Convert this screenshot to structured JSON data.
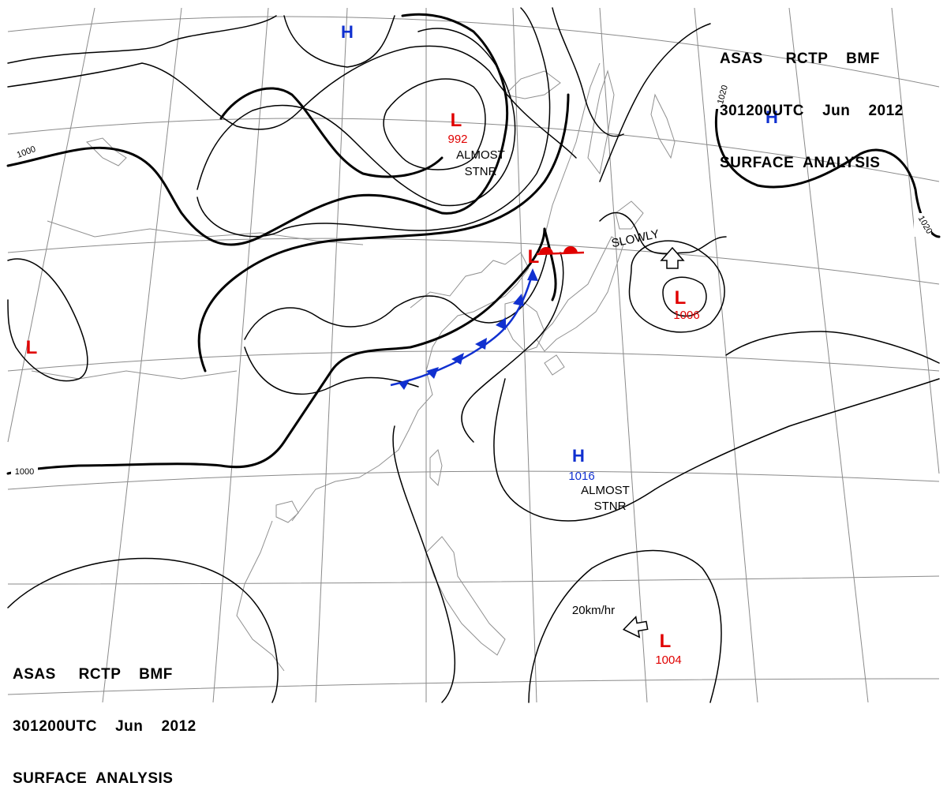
{
  "header": {
    "line1": "ASAS     RCTP    BMF",
    "line2": "301200UTC    Jun    2012",
    "line3": "SURFACE  ANALYSIS"
  },
  "colors": {
    "low": "#e00000",
    "high": "#1030d0",
    "isobar": "#000000",
    "grid": "#808080",
    "coast": "#909090"
  },
  "pressure_centers": [
    {
      "id": "low-992",
      "type": "L",
      "value": "992",
      "color": "#e00000"
    },
    {
      "id": "low-1006",
      "type": "L",
      "value": "1006",
      "color": "#e00000"
    },
    {
      "id": "low-1004",
      "type": "L",
      "value": "1004",
      "color": "#e00000"
    },
    {
      "id": "low-west",
      "type": "L",
      "value": "",
      "color": "#e00000"
    },
    {
      "id": "low-front",
      "type": "L",
      "value": "",
      "color": "#e00000"
    },
    {
      "id": "high-1016",
      "type": "H",
      "value": "1016",
      "color": "#1030d0"
    },
    {
      "id": "high-north",
      "type": "H",
      "value": "",
      "color": "#1030d0"
    },
    {
      "id": "high-northeast",
      "type": "H",
      "value": "",
      "color": "#1030d0"
    }
  ],
  "movement_labels": {
    "low_992": [
      "ALMOST",
      "STNR"
    ],
    "high_1016": [
      "ALMOST",
      "STNR"
    ],
    "low_1006": "SLOWLY",
    "low_1004": "20km/hr"
  },
  "isobar_labels": [
    "1000",
    "1000",
    "1020",
    "1020"
  ],
  "fronts": [
    {
      "type": "cold",
      "color": "#1030d0"
    },
    {
      "type": "warm",
      "color": "#e00000"
    }
  ]
}
